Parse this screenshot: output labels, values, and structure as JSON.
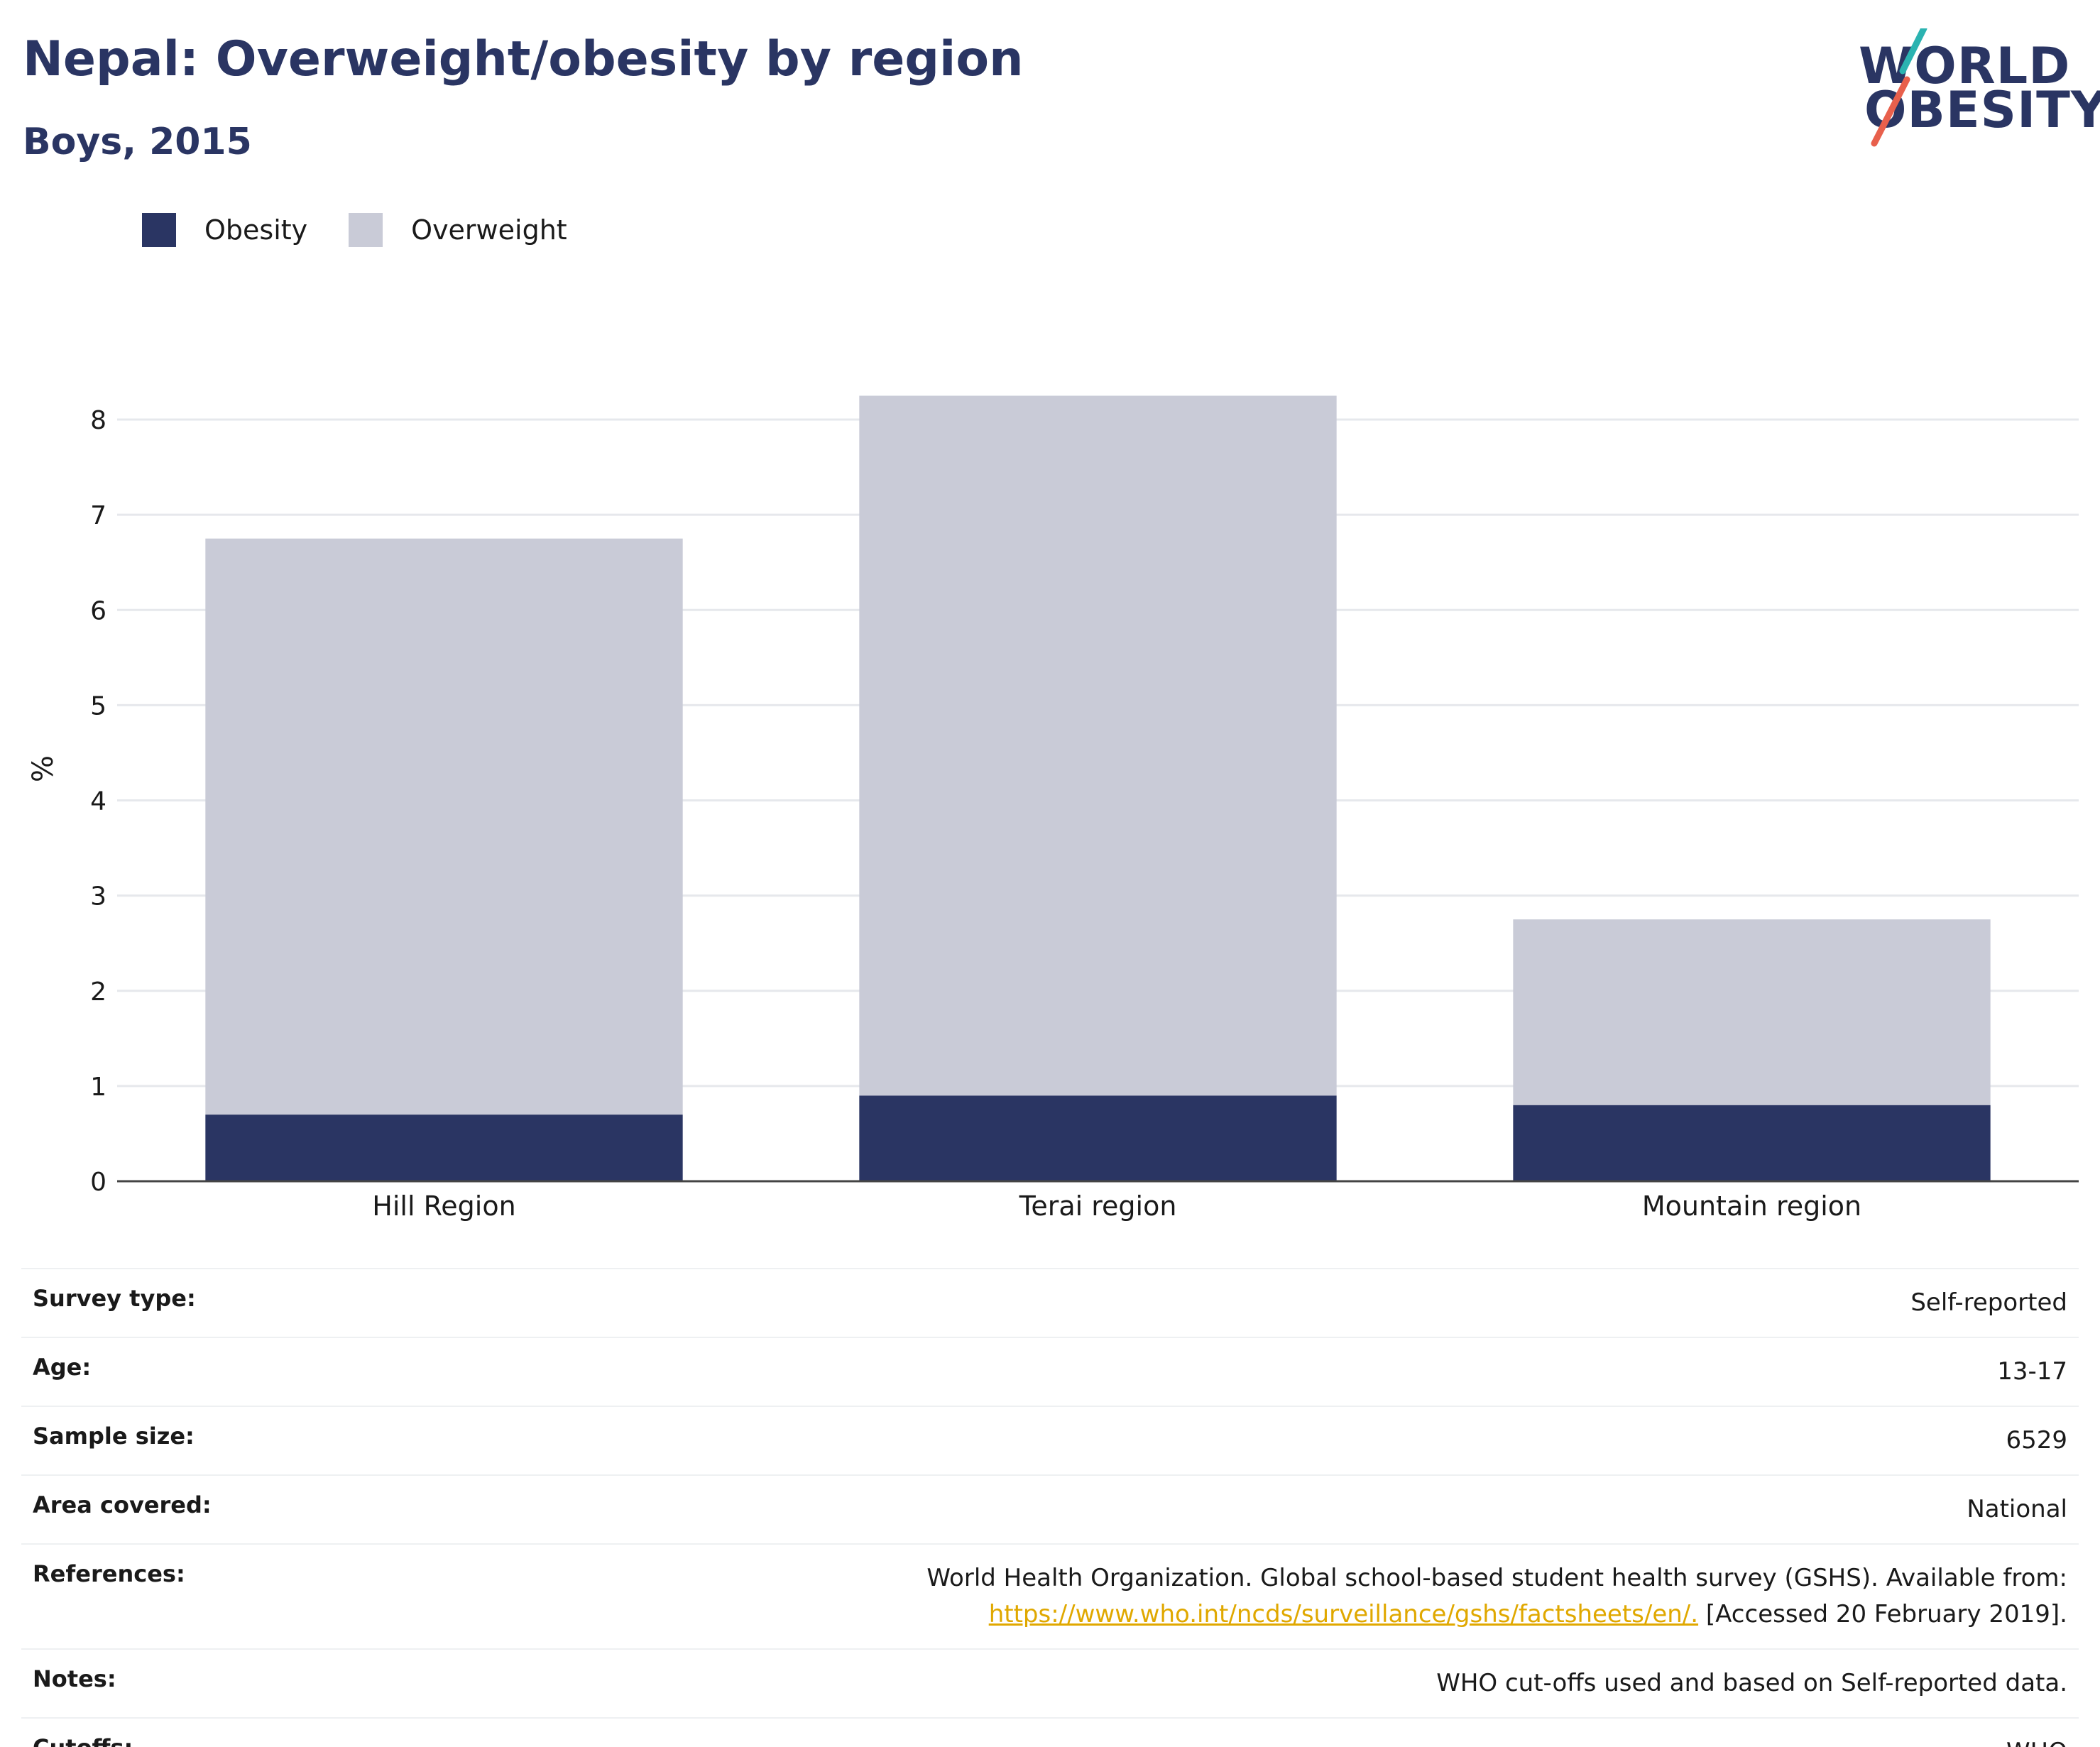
{
  "title": "Nepal: Overweight/obesity by region",
  "subtitle": "Boys, 2015",
  "logo": {
    "line1": "WORLD",
    "line2": "OBESITY"
  },
  "colors": {
    "obesity": "#2a3563",
    "overweight": "#c9cbd7",
    "title": "#2a3563",
    "link": "#e0a800",
    "logo_teal": "#2bb3b1",
    "logo_red": "#e8604c"
  },
  "legend": [
    {
      "label": "Obesity",
      "color": "#2a3563"
    },
    {
      "label": "Overweight",
      "color": "#c9cbd7"
    }
  ],
  "chart_data": {
    "type": "bar",
    "stacked": true,
    "categories": [
      "Hill Region",
      "Terai region",
      "Mountain region"
    ],
    "series": [
      {
        "name": "Obesity",
        "values": [
          0.7,
          0.9,
          0.8
        ]
      },
      {
        "name": "Overweight",
        "values": [
          6.05,
          7.35,
          1.95
        ]
      }
    ],
    "totals": [
      6.75,
      8.25,
      2.75
    ],
    "ylabel": "%",
    "ylim": [
      0,
      8.5
    ],
    "yticks": [
      0,
      1,
      2,
      3,
      4,
      5,
      6,
      7,
      8
    ],
    "grid": true,
    "legend_position": "top-left"
  },
  "info": [
    {
      "key": "Survey type:",
      "value": "Self-reported"
    },
    {
      "key": "Age:",
      "value": "13-17"
    },
    {
      "key": "Sample size:",
      "value": "6529"
    },
    {
      "key": "Area covered:",
      "value": "National"
    },
    {
      "key": "References:",
      "value_line1": "World Health Organization. Global school-based student health survey (GSHS). Available from:",
      "link": "https://www.who.int/ncds/surveillance/gshs/factsheets/en/.",
      "value_tail": " [Accessed 20 February 2019]."
    },
    {
      "key": "Notes:",
      "value": "WHO cut-offs used and based on Self-reported data."
    },
    {
      "key": "Cutoffs:",
      "value": "WHO"
    }
  ]
}
